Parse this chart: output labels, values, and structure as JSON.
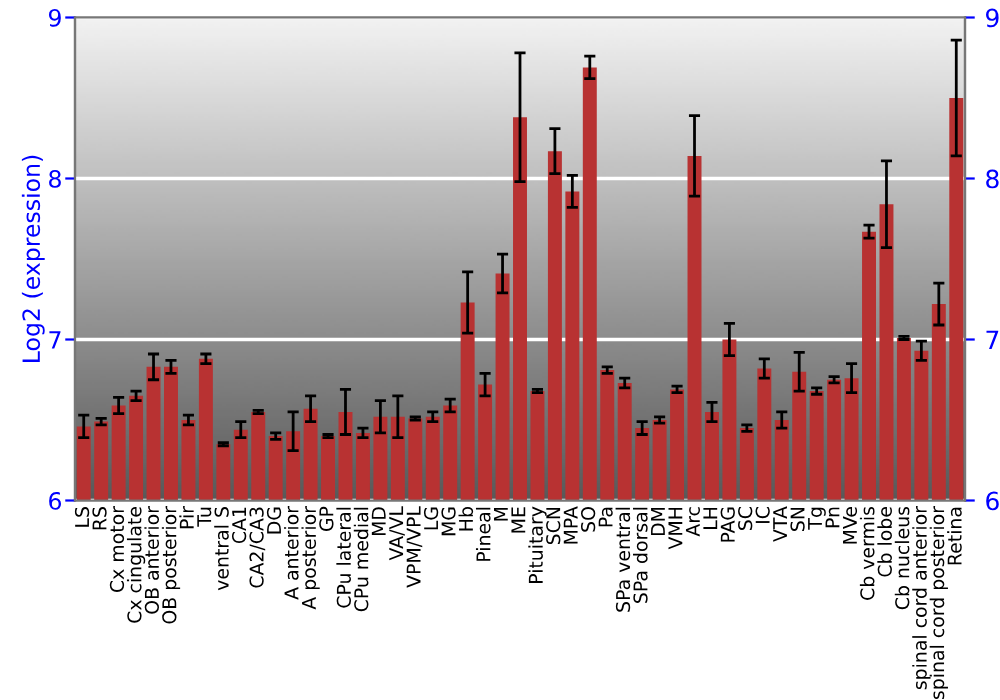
{
  "chart_data": {
    "type": "bar",
    "ylabel": "Log2 (expression)",
    "categories": [
      "LS",
      "RS",
      "Cx motor",
      "Cx cingulate",
      "OB anterior",
      "OB posterior",
      "Pir",
      "Tu",
      "ventral S",
      "CA1",
      "CA2/CA3",
      "DG",
      "A anterior",
      "A posterior",
      "GP",
      "CPu lateral",
      "CPu medial",
      "MD",
      "VA/VL",
      "VPM/VPL",
      "LG",
      "MG",
      "Hb",
      "Pineal",
      "M",
      "ME",
      "Pituitary",
      "SCN",
      "MPA",
      "SO",
      "Pa",
      "SPa ventral",
      "SPa dorsal",
      "DM",
      "VMH",
      "Arc",
      "LH",
      "PAG",
      "SC",
      "IC",
      "VTA",
      "SN",
      "Tg",
      "Pn",
      "MVe",
      "Cb vermis",
      "Cb lobe",
      "Cb nucleus",
      "spinal cord anterior",
      "spinal cord posterior",
      "Retina"
    ],
    "values": [
      6.46,
      6.49,
      6.59,
      6.65,
      6.83,
      6.83,
      6.5,
      6.88,
      6.35,
      6.44,
      6.55,
      6.4,
      6.43,
      6.57,
      6.4,
      6.55,
      6.42,
      6.52,
      6.52,
      6.51,
      6.52,
      6.59,
      7.23,
      6.72,
      7.41,
      8.38,
      6.68,
      8.17,
      7.92,
      8.69,
      6.81,
      6.73,
      6.45,
      6.5,
      6.69,
      8.14,
      6.55,
      7.0,
      6.45,
      6.82,
      6.5,
      6.8,
      6.68,
      6.75,
      6.76,
      7.67,
      7.84,
      7.01,
      6.93,
      7.22,
      8.5
    ],
    "errors": [
      0.07,
      0.02,
      0.05,
      0.03,
      0.08,
      0.04,
      0.03,
      0.03,
      0.01,
      0.05,
      0.01,
      0.02,
      0.12,
      0.08,
      0.01,
      0.14,
      0.03,
      0.1,
      0.13,
      0.01,
      0.03,
      0.04,
      0.19,
      0.07,
      0.12,
      0.4,
      0.01,
      0.14,
      0.1,
      0.07,
      0.02,
      0.03,
      0.04,
      0.02,
      0.02,
      0.25,
      0.06,
      0.1,
      0.02,
      0.06,
      0.05,
      0.12,
      0.02,
      0.02,
      0.09,
      0.04,
      0.27,
      0.01,
      0.06,
      0.13,
      0.36
    ],
    "color": "#b83232",
    "ylim": [
      6,
      9
    ],
    "yticks": [
      6,
      7,
      8,
      9
    ],
    "y2lim": [
      6,
      9
    ],
    "y2ticks": [
      6,
      7,
      8,
      9
    ],
    "grid": "y"
  }
}
